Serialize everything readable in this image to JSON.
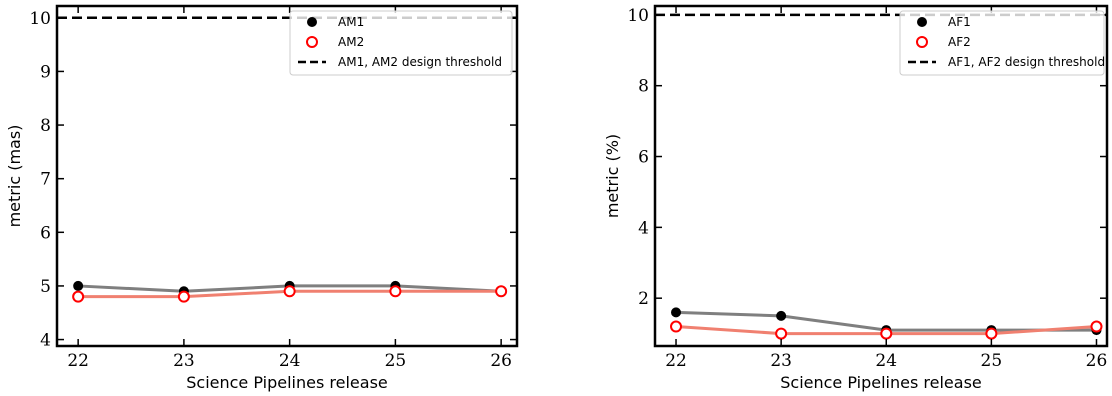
{
  "chart_data": [
    {
      "type": "line",
      "xlabel": "Science Pipelines release",
      "ylabel": "metric (mas)",
      "x": [
        22,
        23,
        24,
        25,
        26
      ],
      "xticks": [
        "22",
        "23",
        "24",
        "25",
        "26"
      ],
      "xlim": [
        21.8,
        26.15
      ],
      "ylim": [
        3.88,
        10.22
      ],
      "yticks": [
        "4",
        "5",
        "6",
        "7",
        "8",
        "9",
        "10"
      ],
      "grid": false,
      "legend_position": "upper-right",
      "series": [
        {
          "name": "AM1",
          "values": [
            5.0,
            4.9,
            5.0,
            5.0,
            4.9
          ],
          "marker": "filled-circle",
          "marker_color": "#000000",
          "line_color": "#7f7f7f"
        },
        {
          "name": "AM2",
          "values": [
            4.8,
            4.8,
            4.9,
            4.9,
            4.9
          ],
          "marker": "open-circle",
          "marker_color": "#ff0000",
          "line_color": "#f08070"
        }
      ],
      "threshold": {
        "name": "AM1, AM2 design threshold",
        "value": 10,
        "color": "#000000",
        "style": "dashed"
      }
    },
    {
      "type": "line",
      "xlabel": "Science Pipelines release",
      "ylabel": "metric (%)",
      "x": [
        22,
        23,
        24,
        25,
        26
      ],
      "xticks": [
        "22",
        "23",
        "24",
        "25",
        "26"
      ],
      "xlim": [
        21.8,
        26.1
      ],
      "ylim": [
        0.65,
        10.25
      ],
      "yticks": [
        "2",
        "4",
        "6",
        "8",
        "10"
      ],
      "grid": false,
      "legend_position": "upper-right",
      "series": [
        {
          "name": "AF1",
          "values": [
            1.6,
            1.5,
            1.1,
            1.1,
            1.1
          ],
          "marker": "filled-circle",
          "marker_color": "#000000",
          "line_color": "#7f7f7f"
        },
        {
          "name": "AF2",
          "values": [
            1.2,
            1.0,
            1.0,
            1.0,
            1.2
          ],
          "marker": "open-circle",
          "marker_color": "#ff0000",
          "line_color": "#f08070"
        }
      ],
      "threshold": {
        "name": "AF1, AF2 design threshold",
        "value": 10,
        "color": "#000000",
        "style": "dashed"
      }
    }
  ]
}
